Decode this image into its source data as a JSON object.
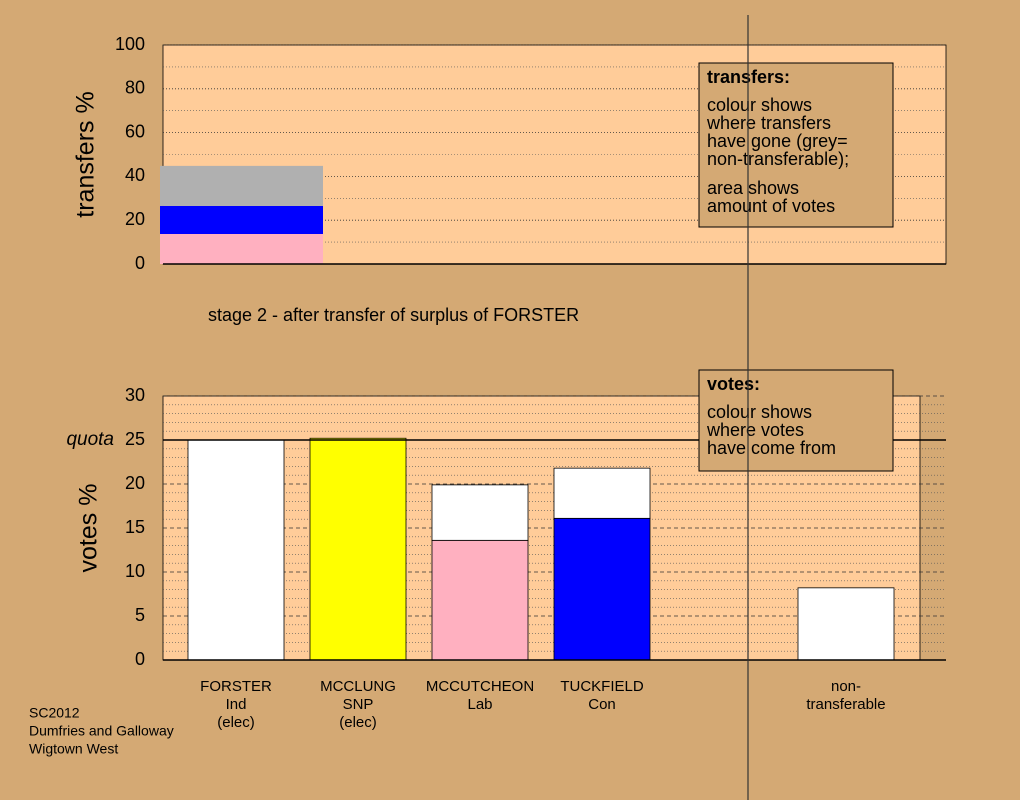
{
  "footer": [
    "SC2012",
    "Dumfries and Galloway",
    "Wigtown West"
  ],
  "chart_data": [
    {
      "type": "bar",
      "stacked": true,
      "ylabel": "transfers %",
      "ylim": [
        0,
        100
      ],
      "yticks": [
        0,
        20,
        40,
        60,
        80,
        100
      ],
      "grid": true,
      "categories": [
        null
      ],
      "series": [
        {
          "color": "#ffb0c0",
          "values": [
            13.7
          ]
        },
        {
          "color": "#0000ff",
          "values": [
            12.8
          ]
        },
        {
          "color": "#b0b0b0",
          "values": [
            18.3
          ]
        }
      ],
      "annotation": {
        "title": "transfers:",
        "paragraphs": [
          [
            "colour shows",
            "where transfers",
            "have gone (grey=",
            "non-transferable);"
          ],
          [
            "area shows",
            "amount of votes"
          ]
        ]
      },
      "caption": "stage 2 - after transfer of surplus of FORSTER"
    },
    {
      "type": "bar",
      "stacked": true,
      "ylabel": "votes %",
      "ylim": [
        0,
        30
      ],
      "yticks": [
        0,
        5,
        10,
        15,
        20,
        25,
        30
      ],
      "grid": true,
      "quota": {
        "value": 25,
        "label": "quota"
      },
      "categories": [
        [
          "FORSTER",
          "Ind",
          "(elec)"
        ],
        [
          "MCCLUNG",
          "SNP",
          "(elec)"
        ],
        [
          "MCCUTCHEON",
          "Lab"
        ],
        [
          "TUCKFIELD",
          "Con"
        ],
        null,
        [
          "non-",
          "transferable"
        ]
      ],
      "series": [
        {
          "colors": [
            "#ffffff",
            "#ffff00",
            "#ffb0c0",
            "#0000ff",
            null,
            "#ffffff"
          ],
          "values": [
            25.0,
            25.2,
            13.6,
            16.1,
            null,
            8.2
          ]
        },
        {
          "color": "#ffffff",
          "values": [
            null,
            null,
            6.3,
            5.7,
            null,
            null
          ]
        }
      ],
      "annotation": {
        "title": "votes:",
        "paragraphs": [
          [
            "colour shows",
            "where votes",
            "have come from"
          ]
        ]
      }
    }
  ]
}
